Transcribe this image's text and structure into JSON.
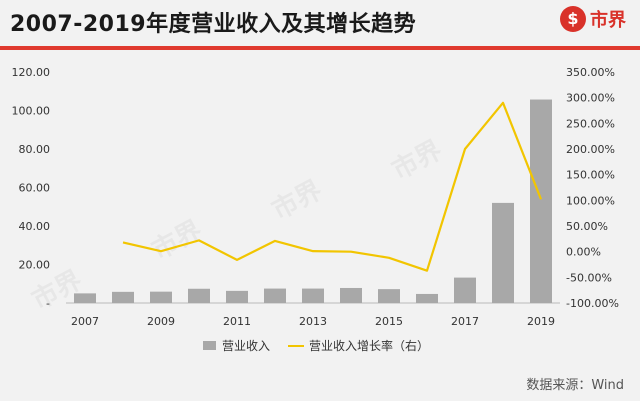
{
  "title": "2007-2019年度营业收入及其增长趋势",
  "brand": {
    "name": "市界",
    "icon": "dollar-circle-icon"
  },
  "source": "数据来源：Wind",
  "watermark": "市界",
  "colors": {
    "bar": "#a8a8a8",
    "line": "#f2c500",
    "accent": "#e03a2f"
  },
  "chart_data": {
    "type": "bar",
    "x": [
      2007,
      2008,
      2009,
      2010,
      2011,
      2012,
      2013,
      2014,
      2015,
      2016,
      2017,
      2018,
      2019
    ],
    "x_tick_labels": [
      "2007",
      "2009",
      "2011",
      "2013",
      "2015",
      "2017",
      "2019"
    ],
    "series": [
      {
        "name": "营业收入",
        "type": "bar",
        "axis": "left",
        "values": [
          5.0,
          5.8,
          5.9,
          7.4,
          6.3,
          7.5,
          7.5,
          7.8,
          7.2,
          4.7,
          13.2,
          52.0,
          105.7
        ]
      },
      {
        "name": "营业收入增长率（右）",
        "type": "line",
        "axis": "right",
        "values": [
          null,
          18,
          1,
          22,
          -16,
          21,
          1,
          0,
          -12,
          -37,
          200,
          290,
          102
        ]
      }
    ],
    "y_left": {
      "min": 0,
      "max": 120,
      "step": 20,
      "tick_labels": [
        "-",
        "20.00",
        "40.00",
        "60.00",
        "80.00",
        "100.00",
        "120.00"
      ]
    },
    "y_right": {
      "min": -100,
      "max": 350,
      "step": 50,
      "tick_labels": [
        "-100.00%",
        "-50.00%",
        "0.00%",
        "50.00%",
        "100.00%",
        "150.00%",
        "200.00%",
        "250.00%",
        "300.00%",
        "350.00%"
      ]
    },
    "legend": "bottom-center",
    "grid": false
  }
}
